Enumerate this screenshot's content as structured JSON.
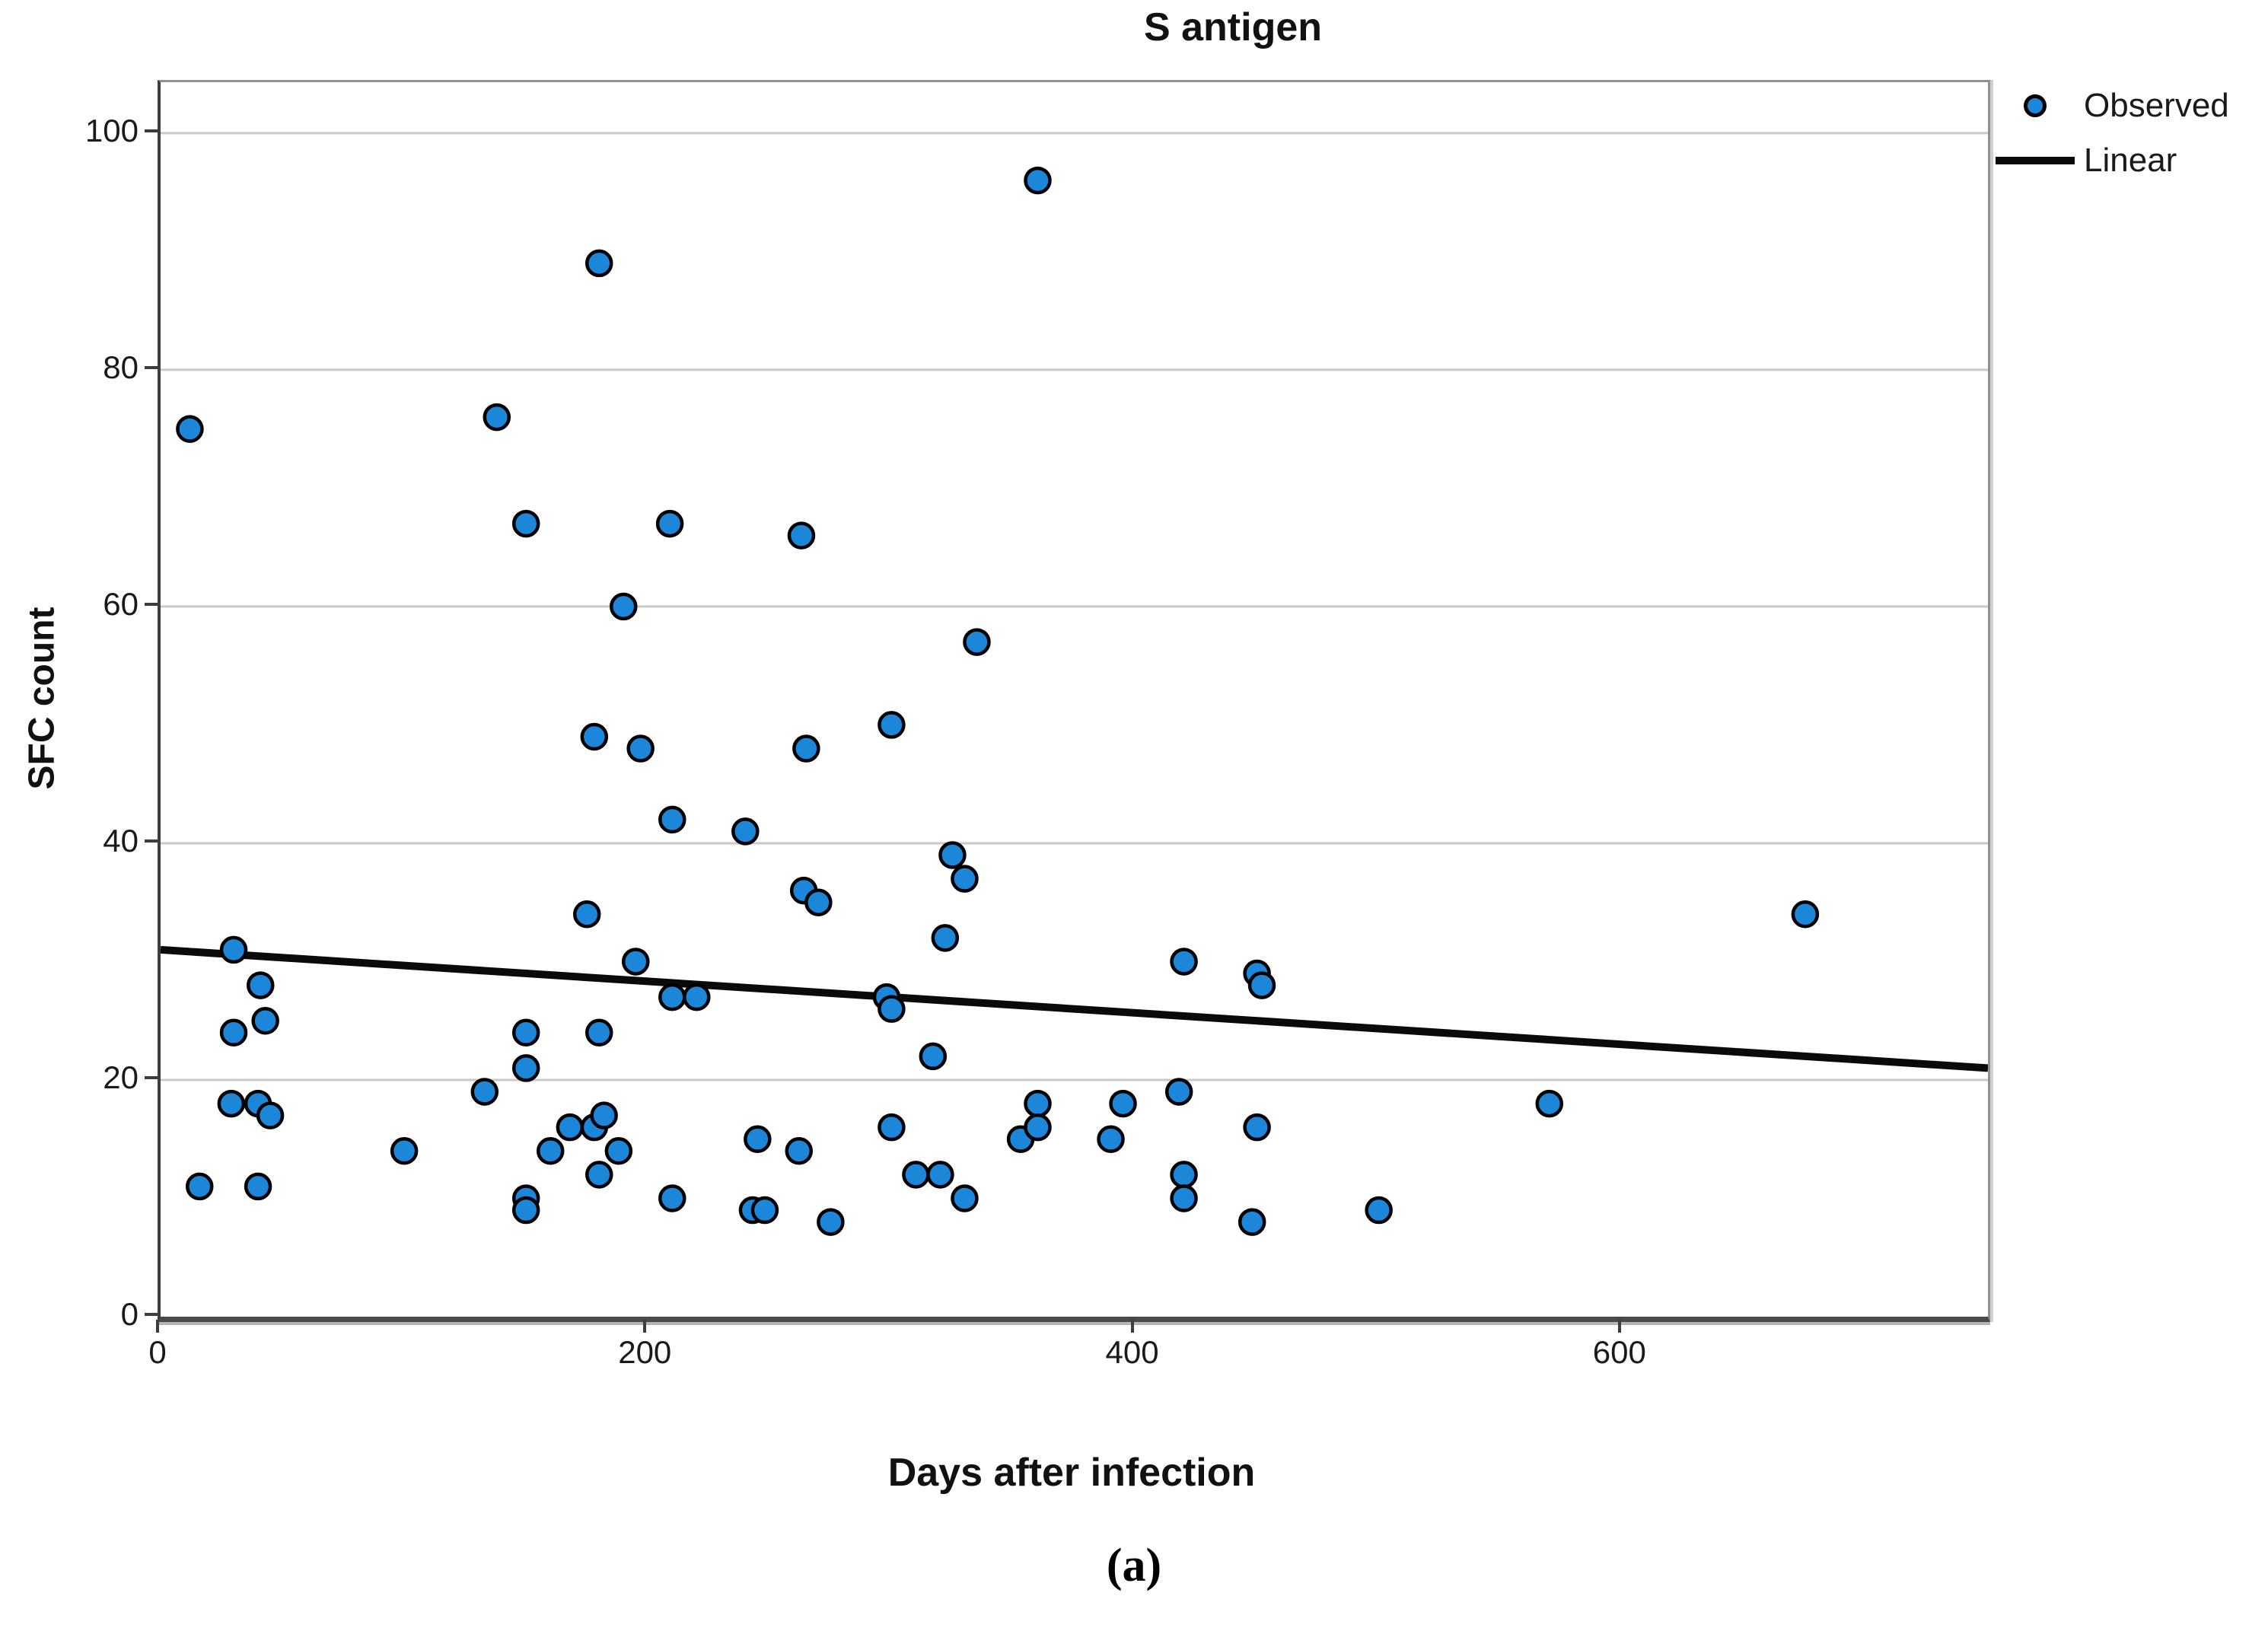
{
  "chart_data": {
    "type": "scatter",
    "title": "S antigen",
    "xlabel": "Days after infection",
    "ylabel": "SFC count",
    "caption": "(a)",
    "xlim": [
      0,
      750
    ],
    "ylim": [
      0,
      104.3
    ],
    "xticks": [
      0,
      200,
      400,
      600
    ],
    "xtick_labels": [
      "0",
      "200",
      "400",
      "600"
    ],
    "yticks": [
      0,
      20,
      40,
      60,
      80,
      100
    ],
    "ytick_labels": [
      "0",
      "20",
      "40",
      "60",
      "80",
      "100"
    ],
    "grid": "horizontal",
    "legend_position": "top-right",
    "legend": [
      {
        "label": "Observed",
        "marker": "dot"
      },
      {
        "label": "Linear",
        "marker": "line"
      }
    ],
    "series": [
      {
        "name": "Observed",
        "type": "scatter",
        "points": [
          [
            12,
            75
          ],
          [
            16,
            11
          ],
          [
            29,
            18
          ],
          [
            30,
            24
          ],
          [
            30,
            31
          ],
          [
            40,
            18
          ],
          [
            40,
            11
          ],
          [
            41,
            28
          ],
          [
            43,
            25
          ],
          [
            45,
            17
          ],
          [
            100,
            14
          ],
          [
            133,
            19
          ],
          [
            138,
            76
          ],
          [
            150,
            67
          ],
          [
            150,
            24
          ],
          [
            150,
            21
          ],
          [
            150,
            10
          ],
          [
            150,
            9
          ],
          [
            160,
            14
          ],
          [
            168,
            16
          ],
          [
            175,
            34
          ],
          [
            178,
            49
          ],
          [
            178,
            16
          ],
          [
            180,
            89
          ],
          [
            180,
            24
          ],
          [
            180,
            12
          ],
          [
            182,
            17
          ],
          [
            188,
            14
          ],
          [
            190,
            60
          ],
          [
            195,
            30
          ],
          [
            197,
            48
          ],
          [
            209,
            67
          ],
          [
            210,
            42
          ],
          [
            210,
            27
          ],
          [
            210,
            10
          ],
          [
            220,
            27
          ],
          [
            240,
            41
          ],
          [
            243,
            9
          ],
          [
            245,
            15
          ],
          [
            248,
            9
          ],
          [
            262,
            14
          ],
          [
            263,
            66
          ],
          [
            264,
            36
          ],
          [
            265,
            48
          ],
          [
            270,
            35
          ],
          [
            275,
            8
          ],
          [
            298,
            27
          ],
          [
            300,
            26
          ],
          [
            300,
            50
          ],
          [
            300,
            16
          ],
          [
            310,
            12
          ],
          [
            317,
            22
          ],
          [
            320,
            12
          ],
          [
            322,
            32
          ],
          [
            325,
            39
          ],
          [
            330,
            37
          ],
          [
            330,
            10
          ],
          [
            335,
            57
          ],
          [
            353,
            15
          ],
          [
            360,
            96
          ],
          [
            360,
            18
          ],
          [
            360,
            16
          ],
          [
            390,
            15
          ],
          [
            395,
            18
          ],
          [
            418,
            19
          ],
          [
            420,
            30
          ],
          [
            420,
            12
          ],
          [
            420,
            10
          ],
          [
            448,
            8
          ],
          [
            450,
            29
          ],
          [
            450,
            16
          ],
          [
            452,
            28
          ],
          [
            500,
            9
          ],
          [
            570,
            18
          ],
          [
            675,
            34
          ]
        ]
      },
      {
        "name": "Linear",
        "type": "line",
        "x": [
          0,
          750
        ],
        "y": [
          31,
          21
        ]
      }
    ],
    "colors": {
      "point_fill": "#1c86d9",
      "point_stroke": "#000000",
      "trend_line": "#0a0a0a",
      "gridline": "#c9c9c9",
      "axis": "#3d3d3d",
      "text": "#1a1a1a"
    }
  }
}
